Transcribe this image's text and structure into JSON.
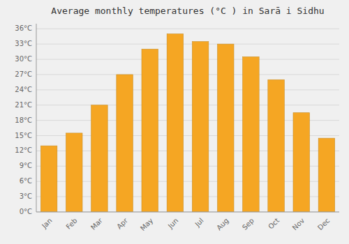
{
  "chart_data": {
    "type": "bar",
    "title": "Average monthly temperatures (°C ) in Sarā i Sidhu",
    "categories": [
      "Jan",
      "Feb",
      "Mar",
      "Apr",
      "May",
      "Jun",
      "Jul",
      "Aug",
      "Sep",
      "Oct",
      "Nov",
      "Dec"
    ],
    "values": [
      13.0,
      15.5,
      21.0,
      27.0,
      32.0,
      35.0,
      33.5,
      33.0,
      30.5,
      26.0,
      19.5,
      14.5
    ],
    "color": "#F5A623",
    "ylim": [
      0,
      37
    ],
    "yticks": [
      {
        "value": 0,
        "label": "0°C"
      },
      {
        "value": 3,
        "label": "3°C"
      },
      {
        "value": 6,
        "label": "6°C"
      },
      {
        "value": 9,
        "label": "9°C"
      },
      {
        "value": 12,
        "label": "12°C"
      },
      {
        "value": 15,
        "label": "15°C"
      },
      {
        "value": 18,
        "label": "18°C"
      },
      {
        "value": 21,
        "label": "21°C"
      },
      {
        "value": 24,
        "label": "24°C"
      },
      {
        "value": 27,
        "label": "27°C"
      },
      {
        "value": 30,
        "label": "30°C"
      },
      {
        "value": 33,
        "label": "33°C"
      },
      {
        "value": 36,
        "label": "36°C"
      }
    ],
    "grid": true
  }
}
